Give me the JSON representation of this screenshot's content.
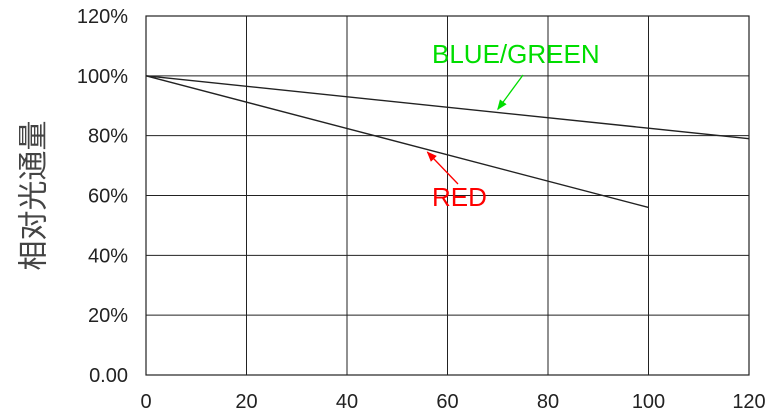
{
  "chart_data": {
    "type": "line",
    "ylabel": "相对光通量",
    "xlabel": "",
    "xlim": [
      0,
      120
    ],
    "ylim": [
      0,
      120
    ],
    "x_ticks": [
      0,
      20,
      40,
      60,
      80,
      100,
      120
    ],
    "x_tick_labels": [
      "0",
      "20",
      "40",
      "60",
      "80",
      "100",
      "120"
    ],
    "y_ticks": [
      0,
      20,
      40,
      60,
      80,
      100,
      120
    ],
    "y_tick_labels": [
      "0.00",
      "20%",
      "40%",
      "60%",
      "80%",
      "100%",
      "120%"
    ],
    "grid": true,
    "series": [
      {
        "name": "BLUE/GREEN",
        "color": "#00dd00",
        "line_color": "#222222",
        "x": [
          0,
          120
        ],
        "y": [
          100,
          79
        ]
      },
      {
        "name": "RED",
        "color": "#ff0000",
        "line_color": "#222222",
        "x": [
          0,
          100
        ],
        "y": [
          100,
          56
        ]
      }
    ],
    "annotations": [
      {
        "text": "BLUE/GREEN",
        "color": "#00dd00",
        "arrow_to_x": 70,
        "arrow_to_y": 88.8
      },
      {
        "text": "RED",
        "color": "#ff0000",
        "arrow_to_x": 56,
        "arrow_to_y": 74.5
      }
    ]
  }
}
